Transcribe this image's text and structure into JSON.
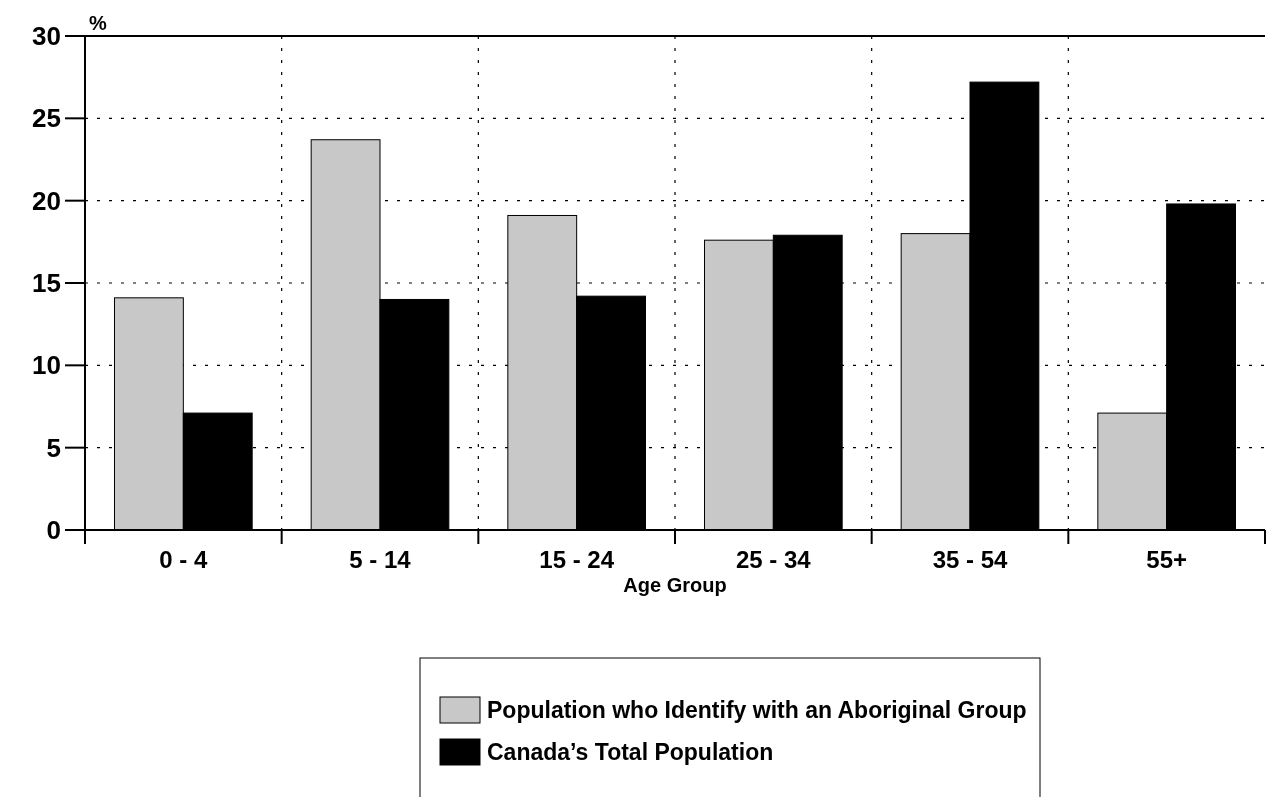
{
  "chart_data": {
    "type": "bar",
    "ylabel": "%",
    "xlabel": "Age Group",
    "categories": [
      "0 - 4",
      "5 - 14",
      "15 - 24",
      "25 - 34",
      "35 - 54",
      "55+"
    ],
    "series": [
      {
        "name": "Population who Identify with an Aboriginal Group",
        "color": "#c8c8c8",
        "values": [
          14.1,
          23.7,
          19.1,
          17.6,
          18.0,
          7.1
        ]
      },
      {
        "name": "Canada’s Total Population",
        "color": "#000000",
        "values": [
          7.1,
          14.0,
          14.2,
          17.9,
          27.2,
          19.8
        ]
      }
    ],
    "ylim": [
      0,
      30
    ],
    "yticks": [
      0,
      5,
      10,
      15,
      20,
      25,
      30
    ],
    "grid": true,
    "legend": "bottom"
  }
}
